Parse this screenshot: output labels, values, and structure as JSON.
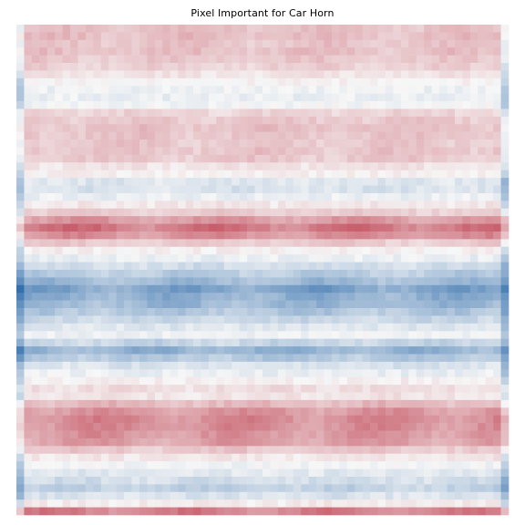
{
  "chart_data": {
    "type": "heatmap",
    "title": "Pixel Important for Car Horn",
    "xlabel": "",
    "ylabel": "",
    "axes_visible": false,
    "grid": false,
    "colormap": "RdBu_r (diverging: blue = negative, white = zero, red = positive)",
    "colors": {
      "negative": "#08519c",
      "zero": "#f7f7f7",
      "positive": "#b2182b"
    },
    "rows": 64,
    "row_profile": [
      0.28,
      0.3,
      0.26,
      0.28,
      0.24,
      0.2,
      0.1,
      0.02,
      -0.04,
      -0.06,
      -0.02,
      0.18,
      0.24,
      0.28,
      0.26,
      0.24,
      0.26,
      0.24,
      0.1,
      0.04,
      -0.12,
      -0.14,
      -0.06,
      0.08,
      0.22,
      0.48,
      0.66,
      0.52,
      0.22,
      0.04,
      -0.06,
      -0.18,
      -0.3,
      -0.42,
      -0.58,
      -0.5,
      -0.44,
      -0.34,
      -0.22,
      -0.12,
      -0.04,
      -0.24,
      -0.48,
      -0.32,
      -0.14,
      -0.06,
      0.04,
      0.14,
      0.1,
      0.32,
      0.5,
      0.56,
      0.54,
      0.5,
      0.46,
      0.24,
      0.08,
      -0.02,
      -0.1,
      -0.18,
      -0.26,
      -0.14,
      0.06,
      0.6
    ]
  }
}
